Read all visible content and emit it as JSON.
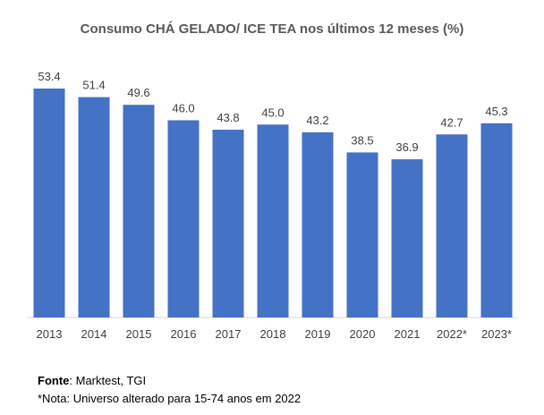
{
  "chart_data": {
    "type": "bar",
    "title": "Consumo CHÁ GELADO/ ICE TEA nos últimos 12 meses (%)",
    "categories": [
      "2013",
      "2014",
      "2015",
      "2016",
      "2017",
      "2018",
      "2019",
      "2020",
      "2021",
      "2022*",
      "2023*"
    ],
    "values": [
      53.4,
      51.4,
      49.6,
      46.0,
      43.8,
      45.0,
      43.2,
      38.5,
      36.9,
      42.7,
      45.3
    ],
    "value_labels": [
      "53.4",
      "51.4",
      "49.6",
      "46.0",
      "43.8",
      "45.0",
      "43.2",
      "38.5",
      "36.9",
      "42.7",
      "45.3"
    ],
    "xlabel": "",
    "ylabel": "",
    "ylim": [
      0,
      56
    ],
    "grid": false,
    "bar_color": "#4472C4"
  },
  "notes": {
    "source_label": "Fonte",
    "source_text": ": Marktest, TGI",
    "note_text": "*Nota: Universo alterado para 15-74 anos em 2022"
  }
}
